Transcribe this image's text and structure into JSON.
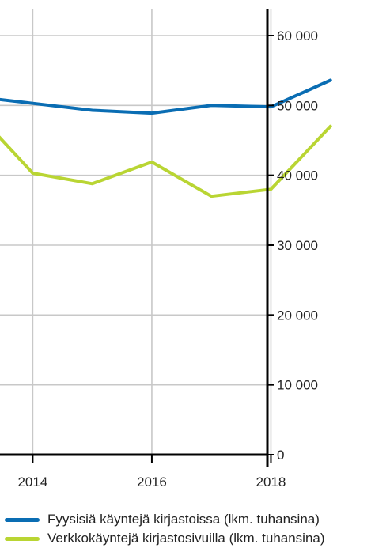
{
  "chart_data": {
    "type": "line",
    "x": [
      2013,
      2014,
      2015,
      2016,
      2017,
      2018,
      2019
    ],
    "series": [
      {
        "name": "Fyysisiä käyntejä kirjastoissa (lkm. tuhansina)",
        "color": "#0a6db3",
        "values": [
          51300,
          50300,
          49300,
          48900,
          50000,
          49800,
          53600
        ]
      },
      {
        "name": "Verkkokäyntejä kirjastosivuilla (lkm. tuhansina)",
        "color": "#b9d533",
        "values": [
          49500,
          40300,
          38800,
          41900,
          37000,
          38000,
          47000
        ]
      }
    ],
    "xlim": [
      2013.45,
      2020.0
    ],
    "ylim": [
      0,
      60000
    ],
    "x_ticks": [
      2014,
      2016,
      2018
    ],
    "x_tick_labels": [
      "2014",
      "2016",
      "2018"
    ],
    "y_ticks": [
      0,
      10000,
      20000,
      30000,
      40000,
      50000,
      60000
    ],
    "y_tick_labels": [
      "0",
      "10 000",
      "20 000",
      "30 000",
      "40 000",
      "50 000",
      "60 000"
    ],
    "y_axis_side": "right",
    "grid": true,
    "legend_position": "bottom",
    "axis_color": "#000000",
    "grid_color": "#c8c8c8"
  }
}
